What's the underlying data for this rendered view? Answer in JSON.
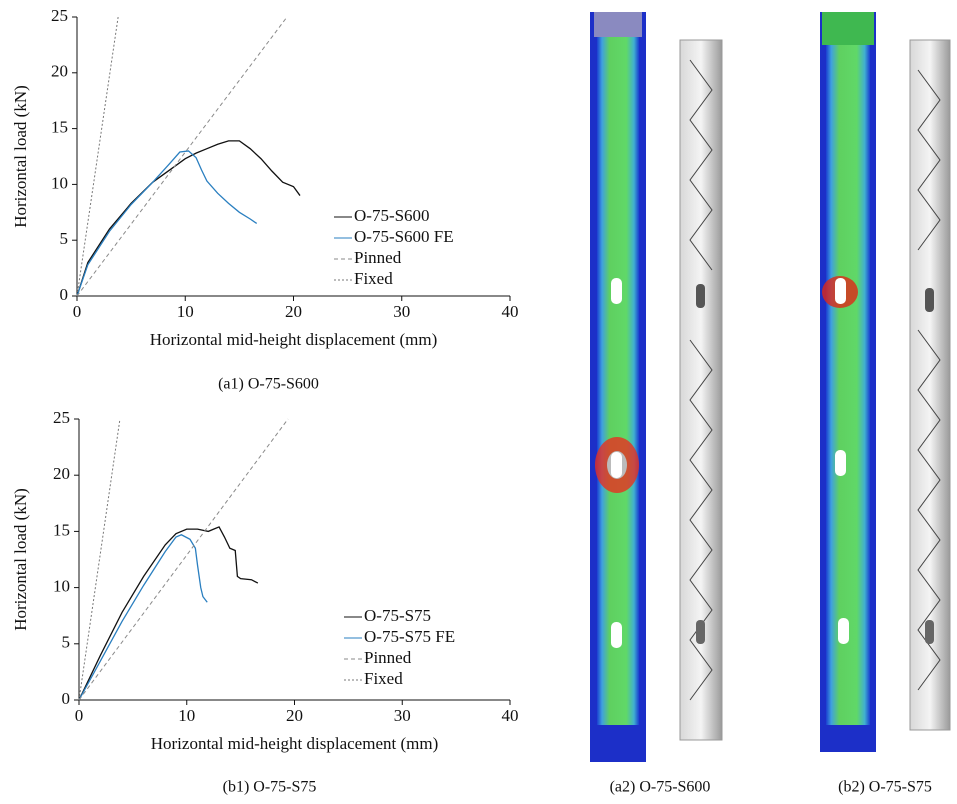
{
  "chart_data": [
    {
      "type": "line",
      "caption": "(a1) O-75-S600",
      "xlabel": "Horizontal mid-height displacement (mm)",
      "ylabel": "Horizontal load (kN)",
      "xlim": [
        0,
        40
      ],
      "ylim": [
        0,
        25
      ],
      "xticks": [
        0,
        10,
        20,
        30,
        40
      ],
      "yticks": [
        0,
        5,
        10,
        15,
        20,
        25
      ],
      "legend": "lower right",
      "series": [
        {
          "name": "O-75-S600",
          "color": "#111111",
          "linestyle": "solid",
          "x": [
            0,
            1,
            3,
            5,
            7,
            9,
            10,
            11,
            12,
            13,
            14,
            15,
            16,
            17,
            18,
            19,
            20,
            20.6
          ],
          "values": [
            0,
            3,
            6,
            8.3,
            10.2,
            11.6,
            12.3,
            12.8,
            13.2,
            13.6,
            13.9,
            13.9,
            13.2,
            12.3,
            11.2,
            10.2,
            9.8,
            9
          ]
        },
        {
          "name": "O-75-S600 FE",
          "color": "#2a7fc0",
          "linestyle": "solid",
          "x": [
            0,
            1,
            3,
            5,
            7,
            8.5,
            9.5,
            10.3,
            11,
            11.5,
            12,
            13,
            14,
            15,
            16,
            16.6
          ],
          "values": [
            0,
            2.8,
            5.8,
            8.2,
            10.2,
            11.8,
            12.9,
            13,
            12.4,
            11.3,
            10.3,
            9.2,
            8.3,
            7.5,
            6.9,
            6.5
          ]
        },
        {
          "name": "Pinned",
          "color": "#8a8a8a",
          "linestyle": "dashed",
          "x": [
            0,
            19.4
          ],
          "values": [
            0,
            25
          ]
        },
        {
          "name": "Fixed",
          "color": "#777777",
          "linestyle": "dotted",
          "x": [
            0,
            3.8
          ],
          "values": [
            0,
            25
          ]
        }
      ]
    },
    {
      "type": "line",
      "caption": "(b1) O-75-S75",
      "xlabel": "Horizontal mid-height displacement (mm)",
      "ylabel": "Horizontal load (kN)",
      "xlim": [
        0,
        40
      ],
      "ylim": [
        0,
        25
      ],
      "xticks": [
        0,
        10,
        20,
        30,
        40
      ],
      "yticks": [
        0,
        5,
        10,
        15,
        20,
        25
      ],
      "legend": "lower right",
      "series": [
        {
          "name": "O-75-S75",
          "color": "#111111",
          "linestyle": "solid",
          "x": [
            0,
            2,
            4,
            6,
            8,
            9,
            10,
            11,
            12,
            12.5,
            13,
            13.5,
            14,
            14.5,
            14.7,
            15,
            16,
            16.6
          ],
          "values": [
            0,
            4,
            7.8,
            11,
            13.8,
            14.8,
            15.2,
            15.2,
            15,
            15.2,
            15.4,
            14.5,
            13.5,
            13.3,
            11,
            10.8,
            10.7,
            10.4
          ]
        },
        {
          "name": "O-75-S75 FE",
          "color": "#2a7fc0",
          "linestyle": "solid",
          "x": [
            0,
            2,
            4,
            6,
            8,
            9,
            9.5,
            10.3,
            10.8,
            11,
            11.3,
            11.5,
            11.9
          ],
          "values": [
            0,
            3.5,
            7,
            10.2,
            13.2,
            14.5,
            14.7,
            14.3,
            13.5,
            12,
            10,
            9.2,
            8.7
          ]
        },
        {
          "name": "Pinned",
          "color": "#8a8a8a",
          "linestyle": "dashed",
          "x": [
            0,
            19.4
          ],
          "values": [
            0,
            25
          ]
        },
        {
          "name": "Fixed",
          "color": "#777777",
          "linestyle": "dotted",
          "x": [
            0,
            3.8
          ],
          "values": [
            0,
            25
          ]
        }
      ]
    }
  ],
  "captions": [
    "(a2) O-75-S600",
    "(b2) O-75-S75"
  ]
}
